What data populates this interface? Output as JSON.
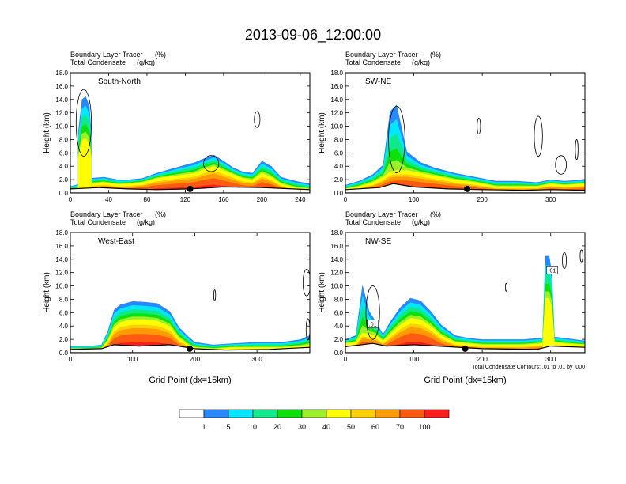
{
  "title": "2013-09-06_12:00:00",
  "chart_data": [
    {
      "type": "heatmap",
      "section": "South-North",
      "label_var1": "Boundary Layer Tracer",
      "label_unit1": "(%)",
      "label_var2": "Total Condensate",
      "label_unit2": "(g/kg)",
      "ylabel": "Height (km)",
      "xlabel": "",
      "xlim": [
        0,
        250
      ],
      "ylim": [
        0,
        18
      ],
      "xticks": [
        "0",
        "40",
        "80",
        "120",
        "160",
        "200",
        "240"
      ],
      "xtick_values": [
        0,
        40,
        80,
        120,
        160,
        200,
        240
      ],
      "marker_x": 125,
      "bands": [
        {
          "xs": [
            0,
            10,
            20,
            35,
            50,
            60,
            75,
            90,
            100,
            110,
            120,
            130,
            140,
            150,
            160,
            170,
            180,
            190,
            200,
            210,
            220,
            235,
            250
          ],
          "top": [
            0.8,
            1.2,
            2.0,
            2.2,
            1.8,
            1.8,
            2.0,
            2.8,
            3.2,
            3.6,
            4.0,
            4.4,
            5.0,
            5.5,
            4.6,
            3.6,
            3.0,
            2.8,
            4.6,
            3.8,
            2.2,
            1.6,
            1.2
          ],
          "hot": [
            0.3,
            0.6,
            1.2,
            1.4,
            1.1,
            1.2,
            1.4,
            2.0,
            2.2,
            2.4,
            2.6,
            2.8,
            3.4,
            3.8,
            3.2,
            2.6,
            2.0,
            1.8,
            2.8,
            2.2,
            1.2,
            0.6,
            0.4
          ]
        },
        {
          "xs": [
            8,
            12,
            16,
            20,
            22
          ],
          "top": [
            9,
            14,
            14.5,
            13,
            9
          ],
          "hot": [
            0,
            0,
            0,
            0,
            0
          ]
        }
      ],
      "terrain": [
        [
          0,
          0.6
        ],
        [
          30,
          0.8
        ],
        [
          60,
          0.6
        ],
        [
          90,
          0.5
        ],
        [
          125,
          0.6
        ],
        [
          160,
          0.9
        ],
        [
          200,
          0.8
        ],
        [
          250,
          0.5
        ]
      ],
      "contours": [
        {
          "cx": 14,
          "cy": 10.5,
          "rx": 8,
          "ry": 5
        },
        {
          "cx": 195,
          "cy": 11,
          "rx": 3,
          "ry": 1.2
        },
        {
          "cx": 147,
          "cy": 4.4,
          "rx": 8,
          "ry": 1.2
        }
      ]
    },
    {
      "type": "heatmap",
      "section": "SW-NE",
      "label_var1": "Boundary Layer Tracer",
      "label_unit1": "(%)",
      "label_var2": "Total Condensate",
      "label_unit2": "(g/kg)",
      "ylabel": "Height (km)",
      "xlabel": "",
      "xlim": [
        0,
        350
      ],
      "ylim": [
        0,
        18
      ],
      "xticks": [
        "0",
        "100",
        "200",
        "300"
      ],
      "xtick_values": [
        0,
        100,
        200,
        300
      ],
      "marker_x": 178,
      "bands": [
        {
          "xs": [
            0,
            20,
            40,
            55,
            65,
            75,
            90,
            110,
            130,
            160,
            190,
            220,
            250,
            280,
            300,
            320,
            350
          ],
          "top": [
            1.0,
            1.6,
            2.6,
            4.0,
            12.0,
            13.0,
            6.0,
            4.4,
            3.6,
            2.8,
            2.2,
            1.6,
            1.6,
            1.4,
            1.8,
            1.6,
            1.8
          ],
          "hot": [
            0.4,
            0.8,
            1.4,
            2.2,
            3.0,
            3.2,
            3.2,
            2.8,
            2.4,
            1.8,
            1.4,
            0.8,
            0.8,
            0.8,
            1.2,
            1.0,
            1.2
          ]
        }
      ],
      "terrain": [
        [
          0,
          0.5
        ],
        [
          50,
          0.8
        ],
        [
          70,
          1.4
        ],
        [
          100,
          0.9
        ],
        [
          150,
          0.6
        ],
        [
          200,
          0.5
        ],
        [
          260,
          0.4
        ],
        [
          300,
          0.5
        ],
        [
          350,
          0.4
        ]
      ],
      "contours": [
        {
          "cx": 75,
          "cy": 8,
          "rx": 12,
          "ry": 5
        },
        {
          "cx": 195,
          "cy": 10,
          "rx": 2.5,
          "ry": 1.2
        },
        {
          "cx": 282,
          "cy": 8.5,
          "rx": 6,
          "ry": 3
        },
        {
          "cx": 315,
          "cy": 4.2,
          "rx": 8,
          "ry": 1.4
        },
        {
          "cx": 338,
          "cy": 6.5,
          "rx": 2,
          "ry": 1.5
        }
      ]
    },
    {
      "type": "heatmap",
      "section": "West-East",
      "label_var1": "Boundary Layer Tracer",
      "label_unit1": "(%)",
      "label_var2": "Total Condensate",
      "label_unit2": "(g/kg)",
      "ylabel": "Height (km)",
      "xlabel": "Grid Point (dx=15km)",
      "xlim": [
        0,
        385
      ],
      "ylim": [
        0,
        18
      ],
      "xticks": [
        "0",
        "100",
        "200",
        "300"
      ],
      "xtick_values": [
        0,
        100,
        200,
        300
      ],
      "marker_x": 192,
      "bands": [
        {
          "xs": [
            0,
            30,
            50,
            60,
            70,
            80,
            100,
            120,
            140,
            160,
            175,
            190,
            200,
            230,
            260,
            300,
            340,
            370,
            385
          ],
          "top": [
            0.8,
            0.8,
            1.0,
            3.0,
            6.2,
            7.0,
            7.5,
            7.4,
            7.2,
            6.0,
            3.6,
            2.2,
            1.4,
            1.0,
            1.2,
            1.4,
            1.4,
            1.8,
            2.4
          ],
          "hot": [
            0.4,
            0.4,
            0.5,
            1.6,
            3.6,
            4.4,
            4.8,
            4.8,
            4.6,
            3.8,
            2.0,
            1.0,
            0.6,
            0.4,
            0.6,
            0.6,
            0.6,
            0.8,
            1.0
          ]
        }
      ],
      "terrain": [
        [
          0,
          0.5
        ],
        [
          50,
          0.6
        ],
        [
          70,
          1.2
        ],
        [
          110,
          1.0
        ],
        [
          160,
          1.2
        ],
        [
          200,
          0.6
        ],
        [
          250,
          0.4
        ],
        [
          320,
          0.5
        ],
        [
          385,
          0.8
        ]
      ],
      "contours": [
        {
          "cx": 380,
          "cy": 10.5,
          "rx": 6,
          "ry": 2
        },
        {
          "cx": 232,
          "cy": 8.6,
          "rx": 1.5,
          "ry": 0.8
        },
        {
          "cx": 382,
          "cy": 3.5,
          "rx": 3,
          "ry": 1.6
        }
      ]
    },
    {
      "type": "heatmap",
      "section": "NW-SE",
      "label_var1": "Boundary Layer Tracer",
      "label_unit1": "(%)",
      "label_var2": "Total Condensate",
      "label_unit2": "(g/kg)",
      "ylabel": "Height (km)",
      "xlabel": "Grid Point (dx=15km)",
      "xlim": [
        0,
        350
      ],
      "ylim": [
        0,
        18
      ],
      "xticks": [
        "0",
        "100",
        "200",
        "300"
      ],
      "xtick_values": [
        0,
        100,
        200,
        300
      ],
      "marker_x": 175,
      "contour_info": "Total Condensate Contours: .01 to .01 by .000",
      "contour_label": ".01",
      "bands": [
        {
          "xs": [
            0,
            15,
            25,
            35,
            45,
            55,
            65,
            80,
            95,
            110,
            125,
            140,
            160,
            180,
            200,
            230,
            260,
            285,
            295,
            305,
            320,
            350
          ],
          "top": [
            1.8,
            2.4,
            10.0,
            6.0,
            4.4,
            2.6,
            4.4,
            6.6,
            8.0,
            7.6,
            6.0,
            4.0,
            2.4,
            2.0,
            1.8,
            1.8,
            1.8,
            2.0,
            2.2,
            2.2,
            2.0,
            1.6
          ],
          "hot": [
            1.2,
            1.4,
            2.8,
            2.6,
            2.4,
            1.6,
            2.6,
            4.0,
            5.0,
            4.8,
            3.8,
            2.4,
            1.4,
            1.2,
            1.0,
            1.0,
            1.0,
            1.2,
            1.4,
            1.4,
            1.2,
            1.0
          ]
        },
        {
          "xs": [
            288,
            292,
            298,
            302,
            306
          ],
          "top": [
            2,
            14.5,
            14.5,
            12,
            2
          ],
          "hot": [
            0,
            0,
            0,
            0,
            0
          ]
        }
      ],
      "terrain": [
        [
          0,
          0.9
        ],
        [
          40,
          1.4
        ],
        [
          60,
          1.0
        ],
        [
          100,
          1.2
        ],
        [
          150,
          0.9
        ],
        [
          200,
          0.6
        ],
        [
          280,
          0.5
        ],
        [
          300,
          1.0
        ],
        [
          350,
          0.8
        ]
      ],
      "contours": [
        {
          "cx": 40,
          "cy": 6,
          "rx": 10,
          "ry": 4
        },
        {
          "cx": 320,
          "cy": 13.8,
          "rx": 3,
          "ry": 1.2
        },
        {
          "cx": 345,
          "cy": 14.5,
          "rx": 2,
          "ry": 0.9
        },
        {
          "cx": 235,
          "cy": 9.8,
          "rx": 1.2,
          "ry": 0.6
        }
      ]
    }
  ],
  "colorbar": {
    "labels": [
      "1",
      "5",
      "10",
      "20",
      "30",
      "40",
      "50",
      "60",
      "70",
      "100"
    ],
    "colors": [
      "#ffffff",
      "#2a88ff",
      "#00e7ff",
      "#10e98a",
      "#0de10a",
      "#9bf02a",
      "#ffff00",
      "#ffcf00",
      "#ff9a00",
      "#ff5a12",
      "#ff1e1e"
    ]
  },
  "axis_ticks": {
    "y": [
      "0.0",
      "2.0",
      "4.0",
      "6.0",
      "8.0",
      "10.0",
      "12.0",
      "14.0",
      "16.0",
      "18.0"
    ]
  }
}
